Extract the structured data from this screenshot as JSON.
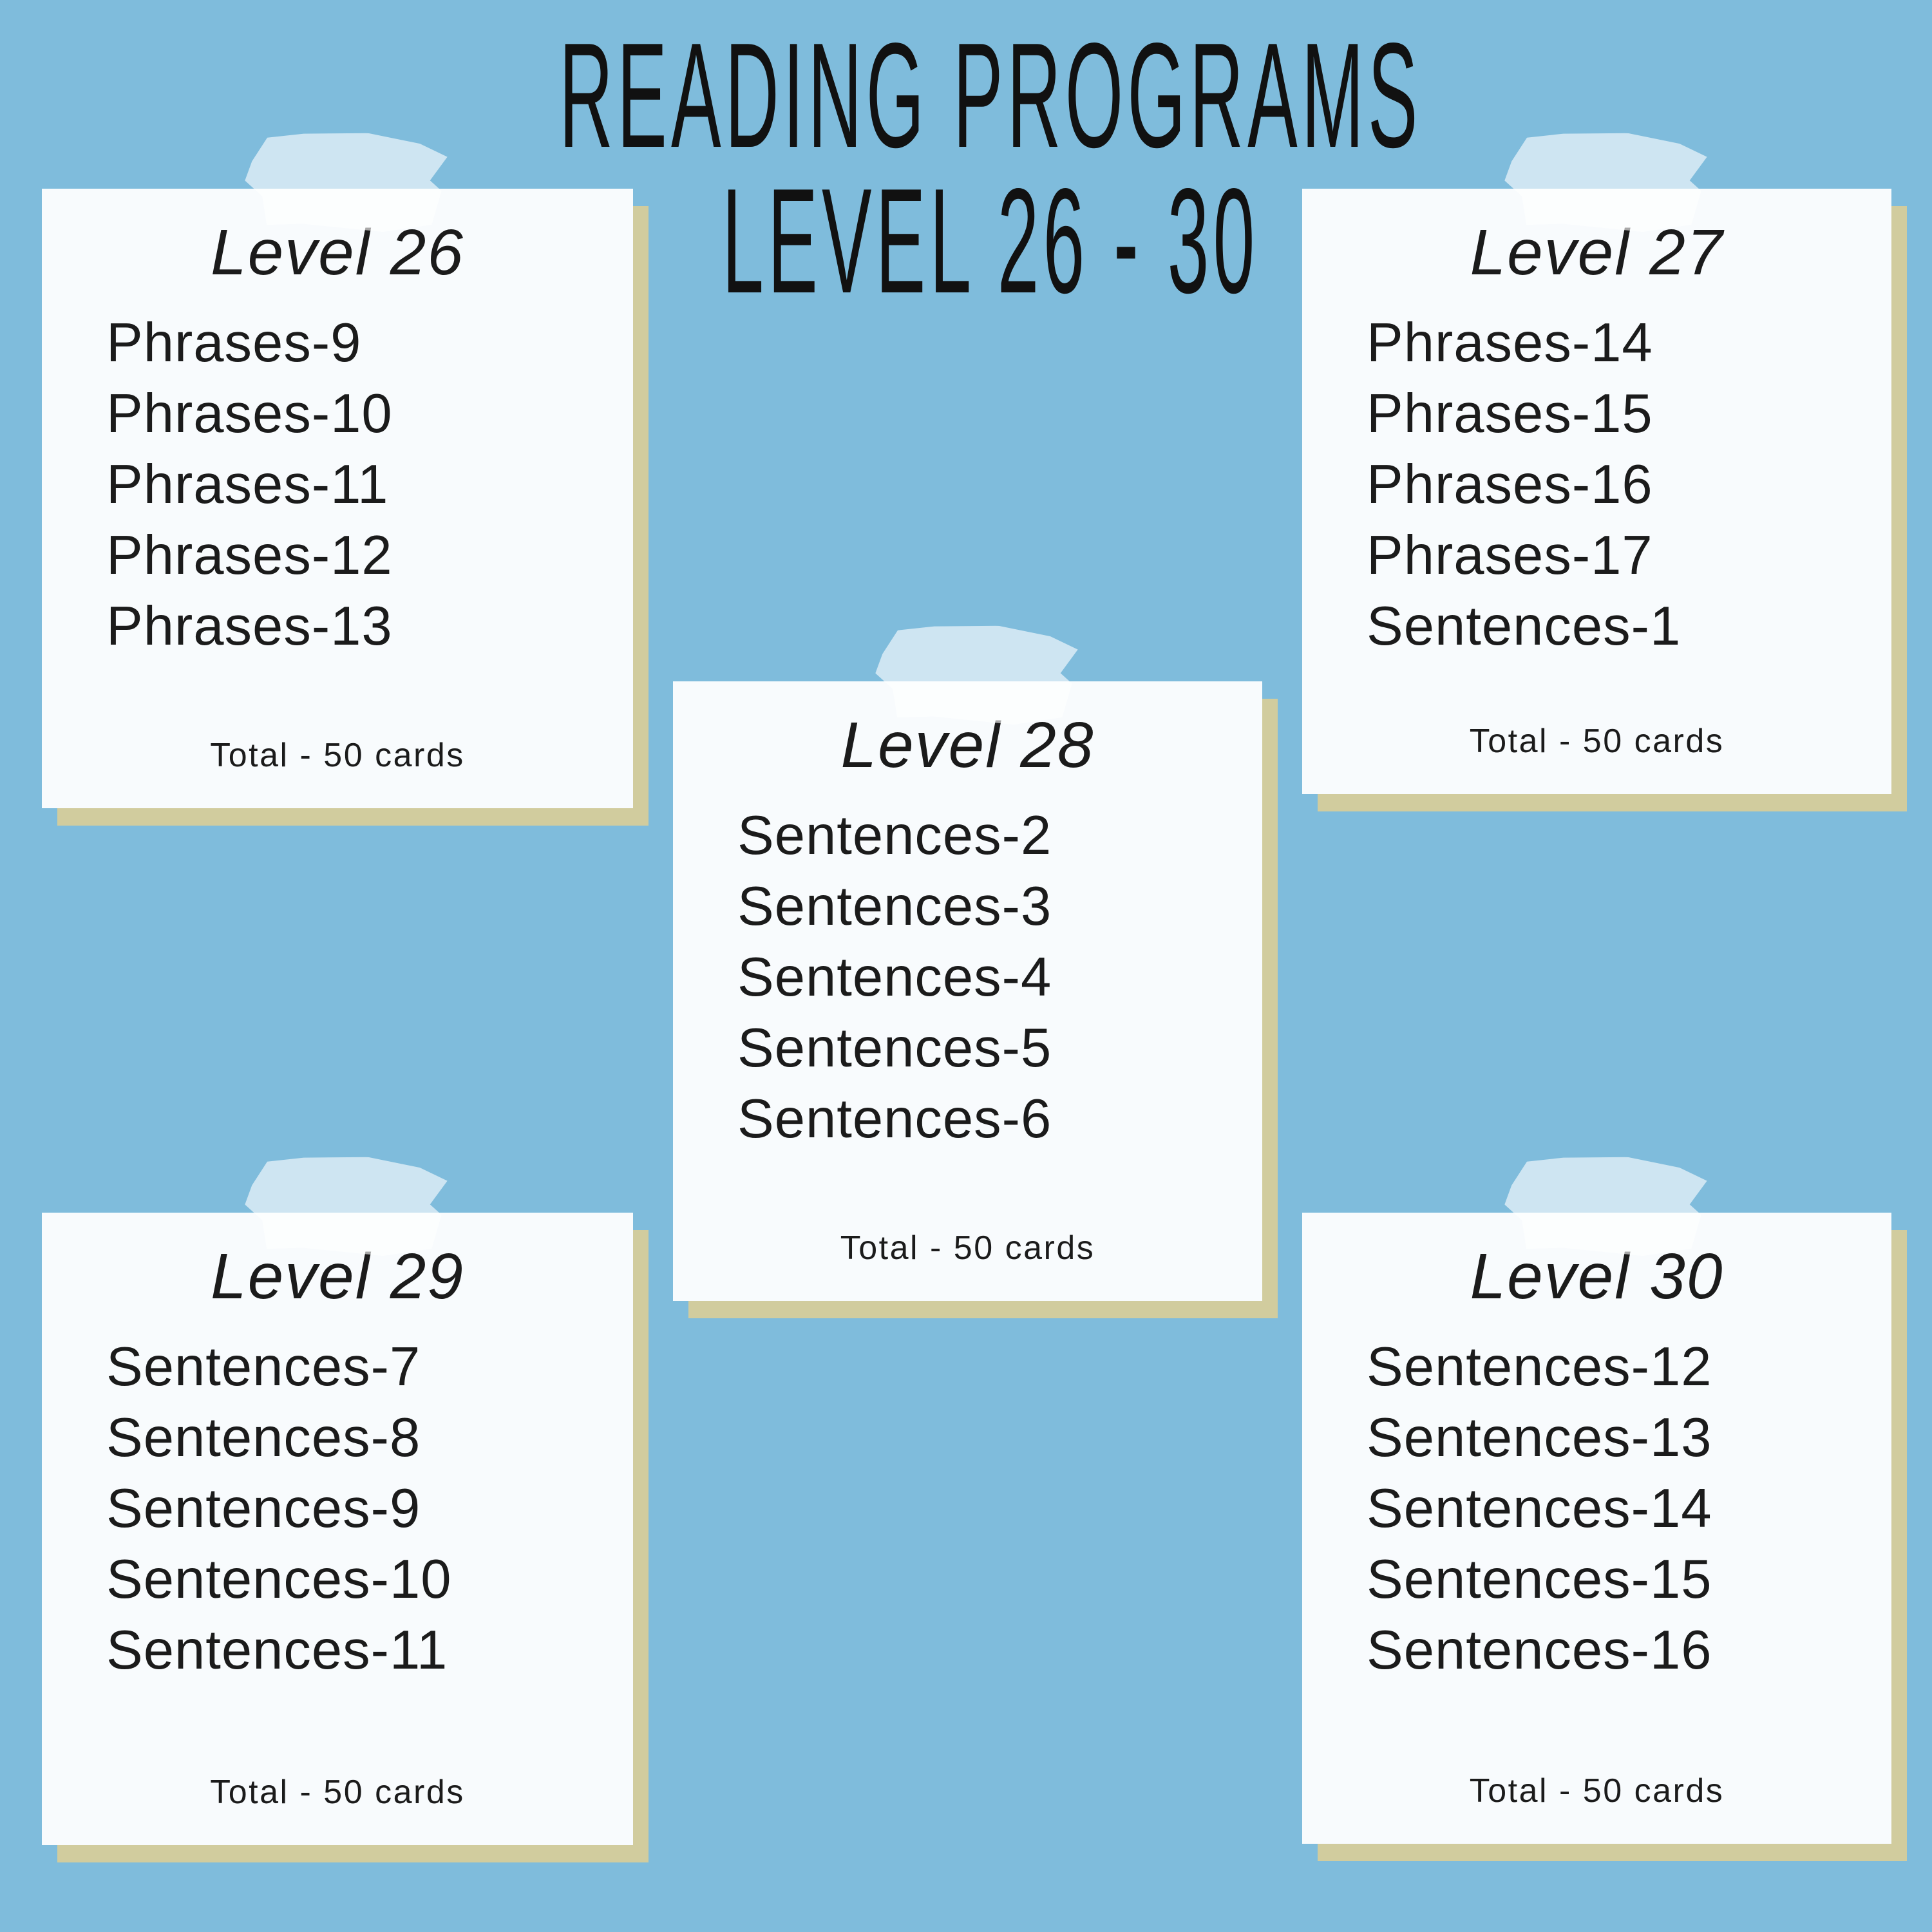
{
  "title": {
    "line1": "READING PROGRAMS",
    "line2": "LEVEL 26 - 30"
  },
  "colors": {
    "background": "#7fbcdc",
    "card_bg": "#f8fbfd",
    "card_shadow": "#d1cc9e",
    "tape_visible": "#cce4f1",
    "text": "#1b1b1b"
  },
  "cards": [
    {
      "title": "Level 26",
      "items": [
        "Phrases-9",
        "Phrases-10",
        "Phrases-11",
        "Phrases-12",
        "Phrases-13"
      ],
      "total": "Total - 50 cards"
    },
    {
      "title": "Level 27",
      "items": [
        "Phrases-14",
        "Phrases-15",
        "Phrases-16",
        "Phrases-17",
        "Sentences-1"
      ],
      "total": "Total - 50 cards"
    },
    {
      "title": "Level 28",
      "items": [
        "Sentences-2",
        "Sentences-3",
        "Sentences-4",
        "Sentences-5",
        "Sentences-6"
      ],
      "total": "Total - 50 cards"
    },
    {
      "title": "Level 29",
      "items": [
        "Sentences-7",
        "Sentences-8",
        "Sentences-9",
        "Sentences-10",
        "Sentences-11"
      ],
      "total": "Total - 50 cards"
    },
    {
      "title": "Level 30",
      "items": [
        "Sentences-12",
        "Sentences-13",
        "Sentences-14",
        "Sentences-15",
        "Sentences-16"
      ],
      "total": "Total - 50 cards"
    }
  ]
}
